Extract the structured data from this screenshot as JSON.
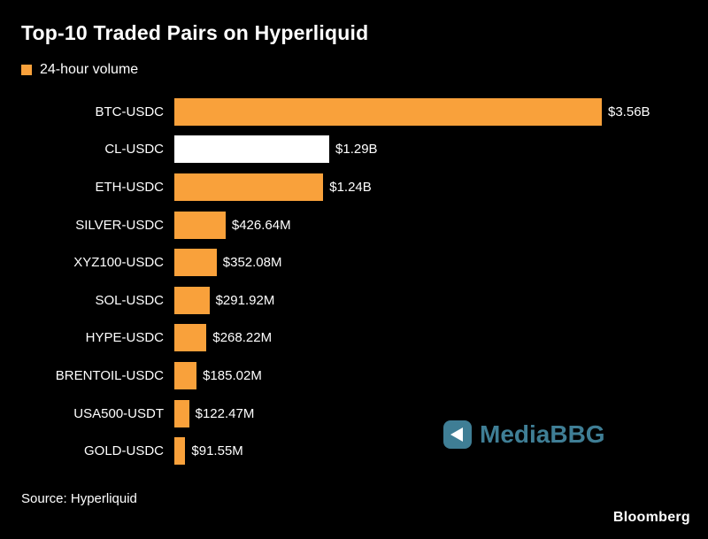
{
  "header": {
    "title": "Top-10 Traded Pairs on Hyperliquid",
    "legend_label": "24-hour volume"
  },
  "chart_data": {
    "type": "bar",
    "orientation": "horizontal",
    "title": "Top-10 Traded Pairs on Hyperliquid",
    "legend": [
      "24-hour volume"
    ],
    "legend_position": "top-left",
    "grid": false,
    "categories": [
      "BTC-USDC",
      "CL-USDC",
      "ETH-USDC",
      "SILVER-USDC",
      "XYZ100-USDC",
      "SOL-USDC",
      "HYPE-USDC",
      "BRENTOIL-USDC",
      "USA500-USDT",
      "GOLD-USDC"
    ],
    "values_million_usd": [
      3560,
      1290,
      1240,
      426.64,
      352.08,
      291.92,
      268.22,
      185.02,
      122.47,
      91.55
    ],
    "value_labels": [
      "$3.56B",
      "$1.29B",
      "$1.24B",
      "$426.64M",
      "$352.08M",
      "$291.92M",
      "$268.22M",
      "$185.02M",
      "$122.47M",
      "$91.55M"
    ],
    "bar_colors": [
      "#f9a13b",
      "#ffffff",
      "#f9a13b",
      "#f9a13b",
      "#f9a13b",
      "#f9a13b",
      "#f9a13b",
      "#f9a13b",
      "#f9a13b",
      "#f9a13b"
    ],
    "xlim": [
      0,
      3560
    ],
    "xlabel": "",
    "ylabel": ""
  },
  "footer": {
    "source": "Source: Hyperliquid",
    "brand": "Bloomberg"
  },
  "watermark": {
    "text": "MediaBBG",
    "color": "#3f7e95",
    "icon": "play-triangle-icon"
  },
  "colors": {
    "background": "#000000",
    "bar": "#f9a13b",
    "highlight_bar": "#ffffff",
    "text": "#ffffff",
    "watermark": "#3f7e95"
  }
}
